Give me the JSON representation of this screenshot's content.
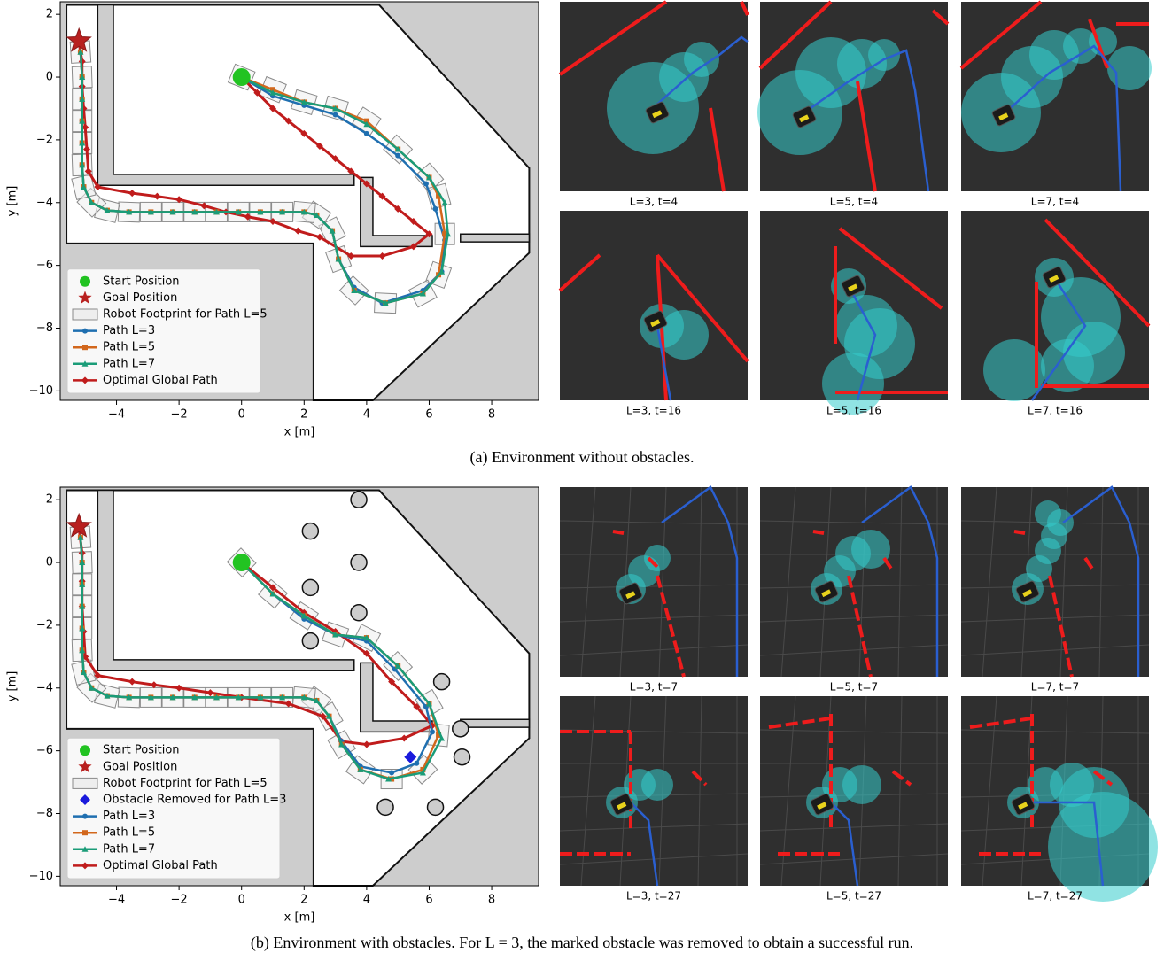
{
  "chart_data": [
    {
      "type": "line",
      "xlabel": "x [m]",
      "ylabel": "y [m]",
      "xlim": [
        -5.8,
        9.5
      ],
      "ylim": [
        -10.3,
        2.4
      ],
      "xticks": [
        {
          "value": -4,
          "label": "−4"
        },
        {
          "value": -2,
          "label": "−2"
        },
        0,
        2,
        4,
        6,
        8
      ],
      "yticks": [
        {
          "value": -10,
          "label": "−10"
        },
        {
          "value": -8,
          "label": "−8"
        },
        {
          "value": -6,
          "label": "−6"
        },
        {
          "value": -4,
          "label": "−4"
        },
        {
          "value": -2,
          "label": "−2"
        },
        0,
        2
      ],
      "start": {
        "name": "Start Position",
        "x": 0,
        "y": 0,
        "color": "#22c322"
      },
      "goal": {
        "name": "Goal Position",
        "x": -5.2,
        "y": 1.15,
        "color": "#b8201f"
      },
      "footprint": {
        "name": "Robot Footprint for Path L=5"
      },
      "series": [
        {
          "name": "Path L=3",
          "color": "#1f6fb0",
          "marker": "circle",
          "x": [
            0,
            1,
            2,
            3,
            4,
            5,
            5.9,
            6.2,
            6.5,
            6.4,
            5.8,
            4.5,
            3.6,
            3.1,
            2.9,
            2.4,
            2.0,
            1.3,
            0.6,
            -0.1,
            -0.8,
            -1.5,
            -2.2,
            -2.9,
            -3.6,
            -4.3,
            -4.8,
            -5.05,
            -5.1,
            -5.1,
            -5.1,
            -5.1,
            -5.1,
            -5.15
          ],
          "values": [
            0,
            -0.6,
            -0.9,
            -1.2,
            -1.8,
            -2.5,
            -3.4,
            -4.2,
            -5.2,
            -6.2,
            -6.8,
            -7.2,
            -6.7,
            -5.8,
            -4.9,
            -4.4,
            -4.3,
            -4.3,
            -4.3,
            -4.3,
            -4.3,
            -4.3,
            -4.3,
            -4.3,
            -4.3,
            -4.25,
            -4.0,
            -3.5,
            -2.8,
            -2.1,
            -1.4,
            -0.7,
            0,
            0.8
          ]
        },
        {
          "name": "Path L=5",
          "color": "#d2671c",
          "marker": "square",
          "x": [
            0,
            1,
            2,
            3,
            4,
            5,
            6,
            6.3,
            6.5,
            6.3,
            5.8,
            4.6,
            3.6,
            3.1,
            2.9,
            2.4,
            2.0,
            1.3,
            0.6,
            -0.1,
            -0.8,
            -1.5,
            -2.2,
            -2.9,
            -3.6,
            -4.3,
            -4.8,
            -5.05,
            -5.1,
            -5.1,
            -5.1,
            -5.1,
            -5.1,
            -5.15
          ],
          "values": [
            0,
            -0.4,
            -0.8,
            -1.0,
            -1.4,
            -2.3,
            -3.2,
            -3.8,
            -5.0,
            -6.3,
            -6.9,
            -7.2,
            -6.8,
            -5.8,
            -4.9,
            -4.4,
            -4.3,
            -4.3,
            -4.3,
            -4.3,
            -4.3,
            -4.3,
            -4.3,
            -4.3,
            -4.3,
            -4.25,
            -4.0,
            -3.5,
            -2.8,
            -2.1,
            -1.4,
            -0.7,
            0,
            0.8
          ]
        },
        {
          "name": "Path L=7",
          "color": "#1a9c78",
          "marker": "triangle",
          "x": [
            0,
            1,
            2,
            3,
            4,
            5,
            6,
            6.5,
            6.6,
            6.4,
            5.8,
            4.6,
            3.6,
            3.1,
            2.9,
            2.4,
            2.0,
            1.3,
            0.6,
            -0.1,
            -0.8,
            -1.5,
            -2.2,
            -2.9,
            -3.6,
            -4.3,
            -4.8,
            -5.05,
            -5.1,
            -5.1,
            -5.1,
            -5.1,
            -5.1,
            -5.15
          ],
          "values": [
            0,
            -0.5,
            -0.8,
            -1.0,
            -1.5,
            -2.3,
            -3.2,
            -4.0,
            -5.0,
            -6.2,
            -6.9,
            -7.2,
            -6.8,
            -5.8,
            -4.9,
            -4.4,
            -4.3,
            -4.3,
            -4.3,
            -4.3,
            -4.3,
            -4.3,
            -4.3,
            -4.3,
            -4.3,
            -4.25,
            -4.0,
            -3.5,
            -2.8,
            -2.1,
            -1.4,
            -0.7,
            0,
            0.8
          ]
        },
        {
          "name": "Optimal Global Path",
          "color": "#c01c1c",
          "marker": "diamond",
          "x": [
            0,
            0.5,
            1,
            1.5,
            2,
            2.5,
            3,
            3.5,
            4,
            4.5,
            5,
            5.5,
            6,
            5.5,
            4.5,
            3.5,
            2.5,
            1.8,
            1,
            0.2,
            -0.5,
            -1.2,
            -2,
            -2.7,
            -3.5,
            -4.6,
            -4.9,
            -4.95,
            -5.0,
            -5.05,
            -5.1,
            -5.1,
            -5.2
          ],
          "values": [
            0,
            -0.5,
            -1.0,
            -1.4,
            -1.8,
            -2.2,
            -2.6,
            -3.0,
            -3.4,
            -3.8,
            -4.2,
            -4.6,
            -5.0,
            -5.4,
            -5.7,
            -5.7,
            -5.1,
            -4.9,
            -4.6,
            -4.45,
            -4.3,
            -4.1,
            -3.9,
            -3.8,
            -3.7,
            -3.5,
            -3.0,
            -2.3,
            -1.6,
            -1.0,
            -0.3,
            0.5,
            1.1
          ]
        }
      ]
    },
    {
      "type": "line",
      "xlabel": "x [m]",
      "ylabel": "y [m]",
      "xlim": [
        -5.8,
        9.5
      ],
      "ylim": [
        -10.3,
        2.4
      ],
      "xticks": [
        {
          "value": -4,
          "label": "−4"
        },
        {
          "value": -2,
          "label": "−2"
        },
        0,
        2,
        4,
        6,
        8
      ],
      "yticks": [
        {
          "value": -10,
          "label": "−10"
        },
        {
          "value": -8,
          "label": "−8"
        },
        {
          "value": -6,
          "label": "−6"
        },
        {
          "value": -4,
          "label": "−4"
        },
        {
          "value": -2,
          "label": "−2"
        },
        0,
        2
      ],
      "start": {
        "name": "Start Position",
        "x": 0,
        "y": 0,
        "color": "#22c322"
      },
      "goal": {
        "name": "Goal Position",
        "x": -5.2,
        "y": 1.15,
        "color": "#b8201f"
      },
      "footprint": {
        "name": "Robot Footprint for Path L=5"
      },
      "removed_obstacle": {
        "name": "Obstacle Removed for Path L=3",
        "x": 5.4,
        "y": -6.2,
        "color": "#1a1adc"
      },
      "series": [
        {
          "name": "Path L=3",
          "color": "#1f6fb0",
          "marker": "circle",
          "x": [
            0,
            1,
            2,
            3,
            4,
            4.9,
            5.9,
            6.1,
            5.6,
            4.8,
            3.8,
            3.2,
            2.8,
            2.4,
            2.0,
            1.3,
            0.6,
            -0.1,
            -0.8,
            -1.5,
            -2.2,
            -2.9,
            -3.6,
            -4.3,
            -4.8,
            -5.05,
            -5.1,
            -5.1,
            -5.1,
            -5.1,
            -5.1,
            -5.15
          ],
          "values": [
            0,
            -1.0,
            -1.8,
            -2.3,
            -2.5,
            -3.4,
            -4.6,
            -5.4,
            -6.4,
            -6.7,
            -6.5,
            -5.7,
            -4.9,
            -4.4,
            -4.3,
            -4.3,
            -4.3,
            -4.3,
            -4.3,
            -4.3,
            -4.3,
            -4.3,
            -4.3,
            -4.25,
            -4.0,
            -3.5,
            -2.8,
            -2.1,
            -1.4,
            -0.7,
            0,
            0.8
          ]
        },
        {
          "name": "Path L=5",
          "color": "#d2671c",
          "marker": "square",
          "x": [
            0,
            1,
            2,
            3,
            4,
            5,
            6,
            6.3,
            5.8,
            4.8,
            3.8,
            3.2,
            2.8,
            2.4,
            2.0,
            1.3,
            0.6,
            -0.1,
            -0.8,
            -1.5,
            -2.2,
            -2.9,
            -3.6,
            -4.3,
            -4.8,
            -5.05,
            -5.1,
            -5.1,
            -5.1,
            -5.1,
            -5.1,
            -5.15
          ],
          "values": [
            0,
            -1.0,
            -1.7,
            -2.3,
            -2.4,
            -3.3,
            -4.5,
            -5.5,
            -6.6,
            -6.9,
            -6.6,
            -5.8,
            -4.9,
            -4.4,
            -4.3,
            -4.3,
            -4.3,
            -4.3,
            -4.3,
            -4.3,
            -4.3,
            -4.3,
            -4.3,
            -4.25,
            -4.0,
            -3.5,
            -2.8,
            -2.1,
            -1.4,
            -0.7,
            0,
            0.8
          ]
        },
        {
          "name": "Path L=7",
          "color": "#1a9c78",
          "marker": "triangle",
          "x": [
            0,
            1,
            2,
            3,
            4,
            5,
            6,
            6.4,
            5.8,
            4.7,
            3.8,
            3.2,
            2.8,
            2.4,
            2.0,
            1.3,
            0.6,
            -0.1,
            -0.8,
            -1.5,
            -2.2,
            -2.9,
            -3.6,
            -4.3,
            -4.8,
            -5.05,
            -5.1,
            -5.1,
            -5.1,
            -5.1,
            -5.1,
            -5.15
          ],
          "values": [
            0,
            -1.0,
            -1.7,
            -2.3,
            -2.4,
            -3.3,
            -4.5,
            -5.6,
            -6.7,
            -6.9,
            -6.6,
            -5.8,
            -4.9,
            -4.4,
            -4.3,
            -4.3,
            -4.3,
            -4.3,
            -4.3,
            -4.3,
            -4.3,
            -4.3,
            -4.3,
            -4.25,
            -4.0,
            -3.5,
            -2.8,
            -2.1,
            -1.4,
            -0.7,
            0,
            0.8
          ]
        },
        {
          "name": "Optimal Global Path",
          "color": "#c01c1c",
          "marker": "diamond",
          "x": [
            0,
            1,
            2,
            3,
            4,
            4.8,
            5.6,
            6.1,
            5.2,
            4,
            3.2,
            2.6,
            1.5,
            0,
            -1,
            -2,
            -2.8,
            -3.5,
            -4.6,
            -5.0,
            -5.05,
            -5.1,
            -5.1,
            -5.1,
            -5.2
          ],
          "values": [
            0,
            -0.8,
            -1.6,
            -2.2,
            -2.9,
            -3.8,
            -4.6,
            -5.2,
            -5.6,
            -5.8,
            -5.7,
            -4.9,
            -4.5,
            -4.3,
            -4.15,
            -4.0,
            -3.9,
            -3.8,
            -3.6,
            -3.0,
            -2.2,
            -1.4,
            -0.6,
            0.3,
            1.1
          ]
        }
      ]
    }
  ],
  "panels": [
    {
      "caption": "(a) Environment without obstacles.",
      "snapshots": [
        "L=3, t=4",
        "L=5, t=4",
        "L=7, t=4",
        "L=3, t=16",
        "L=5, t=16",
        "L=7, t=16"
      ]
    },
    {
      "caption": "(b) Environment with obstacles. For L = 3, the marked obstacle was removed to obtain a successful run.",
      "snapshots": [
        "L=3, t=7",
        "L=5, t=7",
        "L=7, t=7",
        "L=3, t=27",
        "L=5, t=27",
        "L=7, t=27"
      ]
    }
  ]
}
